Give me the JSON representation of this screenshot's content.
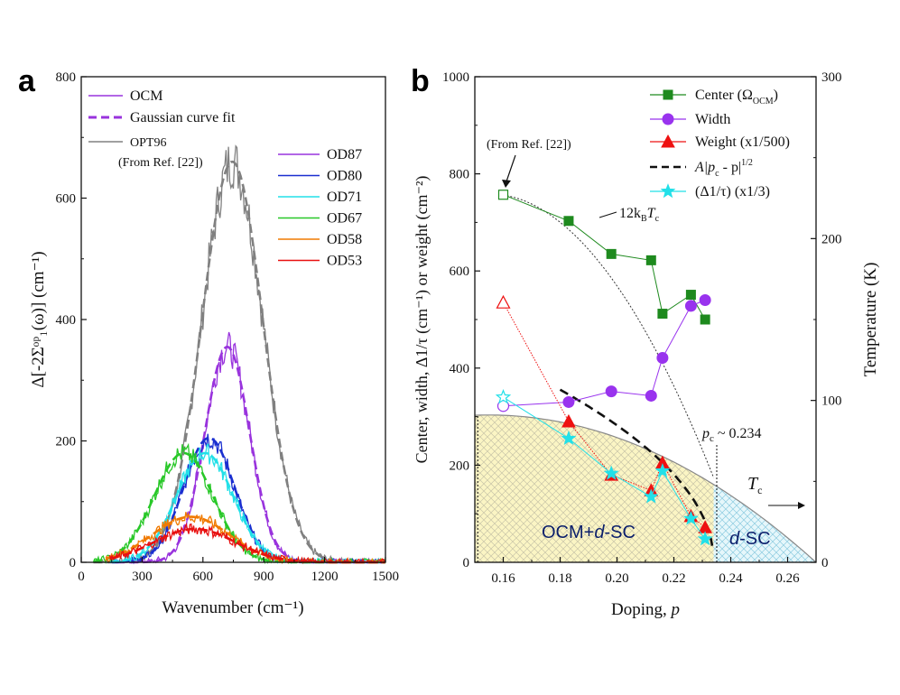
{
  "panel_labels": {
    "a": "a",
    "b": "b"
  },
  "chart_data": [
    {
      "type": "line",
      "panel": "a",
      "xlabel": "Wavenumber (cm⁻¹)",
      "ylabel": "Δ[-2Σᵒᵖ₁(ω)] (cm⁻¹)",
      "xlim": [
        0,
        1500
      ],
      "ylim": [
        0,
        800
      ],
      "xticks": [
        0,
        300,
        600,
        900,
        1200,
        1500
      ],
      "yticks": [
        0,
        200,
        400,
        600,
        800
      ],
      "legend_style": {
        "ocm": "OCM",
        "fit": "Gaussian curve fit",
        "ref": "OPT96",
        "ref_note": "(From Ref. [22])"
      },
      "series": [
        {
          "name": "OPT96",
          "color": "#808080",
          "gauss": {
            "center": 745,
            "amp": 660,
            "sigma": 150,
            "start": 60
          }
        },
        {
          "name": "OD87",
          "color": "#9933dd",
          "gauss": {
            "center": 720,
            "amp": 355,
            "sigma": 110,
            "start": 170
          }
        },
        {
          "name": "OD80",
          "color": "#1a2fd0",
          "gauss": {
            "center": 630,
            "amp": 205,
            "sigma": 125,
            "start": 150
          }
        },
        {
          "name": "OD71",
          "color": "#22e0e8",
          "gauss": {
            "center": 610,
            "amp": 180,
            "sigma": 140,
            "start": 140
          }
        },
        {
          "name": "OD67",
          "color": "#28c828",
          "gauss": {
            "center": 505,
            "amp": 180,
            "sigma": 145,
            "start": 60
          }
        },
        {
          "name": "OD58",
          "color": "#f07a00",
          "gauss": {
            "center": 540,
            "amp": 75,
            "sigma": 190,
            "start": 120
          }
        },
        {
          "name": "OD53",
          "color": "#e81010",
          "gauss": {
            "center": 560,
            "amp": 55,
            "sigma": 200,
            "start": 140
          }
        }
      ]
    },
    {
      "type": "scatter",
      "panel": "b",
      "xlabel_text": "Doping, ",
      "xlabel_var": "p",
      "ylabel": "Center, width, Δ1/τ (cm⁻¹) or weight (cm⁻²)",
      "y2label": "Temperature (K)",
      "xlim": [
        0.15,
        0.27
      ],
      "ylim": [
        0,
        1000
      ],
      "y2lim": [
        0,
        300
      ],
      "xticks": [
        0.16,
        0.18,
        0.2,
        0.22,
        0.24,
        0.26
      ],
      "xticklabels": [
        "0.16",
        "0.18",
        "0.20",
        "0.22",
        "0.24",
        "0.26"
      ],
      "yticks": [
        0,
        200,
        400,
        600,
        800,
        1000
      ],
      "y2ticks": [
        0,
        100,
        200,
        300
      ],
      "series": [
        {
          "name": "Center (ΩOCM)",
          "legend_main": "Center (Ω",
          "legend_sub": "OCM",
          "legend_end": ")",
          "color": "#1e8a1e",
          "marker": "square",
          "ref_point": {
            "x": 0.16,
            "y": 757
          },
          "x": [
            0.183,
            0.198,
            0.212,
            0.216,
            0.226,
            0.231
          ],
          "y": [
            703,
            635,
            622,
            512,
            551,
            500
          ]
        },
        {
          "name": "Width",
          "legend_main": "Width",
          "color": "#9933ee",
          "marker": "circle",
          "ref_point": {
            "x": 0.16,
            "y": 322
          },
          "x": [
            0.183,
            0.198,
            0.212,
            0.216,
            0.226,
            0.231
          ],
          "y": [
            330,
            352,
            343,
            421,
            528,
            540
          ]
        },
        {
          "name": "Weight (x1/500)",
          "legend_main": "Weight (x1/500)",
          "color": "#ee1111",
          "marker": "triangle",
          "ref_point": {
            "x": 0.16,
            "y": 535
          },
          "x": [
            0.183,
            0.198,
            0.212,
            0.216,
            0.226,
            0.231
          ],
          "y": [
            290,
            180,
            148,
            205,
            95,
            72
          ]
        },
        {
          "name": "(Δ1/τ) (x1/3)",
          "legend_main": "(Δ1/τ) (x1/3)",
          "color": "#22e0e8",
          "marker": "star",
          "ref_point": {
            "x": 0.16,
            "y": 340
          },
          "x": [
            0.183,
            0.198,
            0.212,
            0.216,
            0.226,
            0.231
          ],
          "y": [
            255,
            183,
            135,
            188,
            90,
            48
          ]
        }
      ],
      "fit_curve": {
        "name": "A|pc - p|1/2",
        "legend_main": "A|p",
        "legend_sub": "c",
        "legend_mid": " - p|",
        "legend_sup": "1/2",
        "pc": 0.234,
        "A": 1530,
        "x_start": 0.18
      },
      "kt_curve": {
        "label_main": "12k",
        "label_sub1": "B",
        "label_mid": "T",
        "label_sub2": "c"
      },
      "tc_dome": {
        "peak_T": 91,
        "peak_p": 0.155,
        "end_p": 0.27
      },
      "annotations": {
        "from_ref": "(From Ref. [22])",
        "pc_main": "p",
        "pc_sub": "c",
        "pc_value": " ~ 0.234",
        "tc_main": "T",
        "tc_sub": "c",
        "region_left": "OCM+",
        "region_left_d": "d",
        "region_left_end": "-SC",
        "region_right_d": "d",
        "region_right_end": "-SC"
      }
    }
  ]
}
